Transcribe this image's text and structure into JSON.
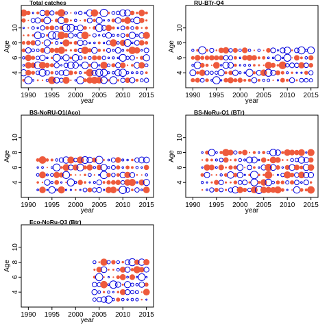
{
  "colors": {
    "positive": "#ee5a3c",
    "negative": "#0000dd",
    "frame": "#000000"
  },
  "chart_data": [
    {
      "type": "scatter",
      "title": "Total catches",
      "xlabel": "year",
      "ylabel": "Age",
      "xlim": [
        1988.5,
        2016.5
      ],
      "ylim": [
        2,
        13
      ],
      "x_ticks": [
        1990,
        1995,
        2000,
        2005,
        2010,
        2015
      ],
      "y_ticks": [
        4,
        6,
        8,
        10
      ],
      "years": [
        1989,
        2015
      ],
      "ages": [
        3,
        12
      ],
      "seed": 11,
      "density": 1.0
    },
    {
      "type": "scatter",
      "title": "RU-BTr-Q4",
      "xlabel": "year",
      "ylabel": "Age",
      "xlim": [
        1988.5,
        2016.5
      ],
      "ylim": [
        2,
        13
      ],
      "x_ticks": [
        1990,
        1995,
        2000,
        2005,
        2010,
        2015
      ],
      "y_ticks": [
        4,
        6,
        8,
        10
      ],
      "years": [
        1990,
        2015
      ],
      "ages": [
        3,
        7
      ],
      "seed": 23,
      "density": 1.0
    },
    {
      "type": "scatter",
      "title": "BS-NoRU-Q1(Aco)",
      "xlabel": "year",
      "ylabel": "Age",
      "xlim": [
        1988.5,
        2016.5
      ],
      "ylim": [
        2,
        13
      ],
      "x_ticks": [
        1990,
        1995,
        2000,
        2005,
        2010,
        2015
      ],
      "y_ticks": [
        4,
        6,
        8,
        10
      ],
      "years": [
        1992,
        2015
      ],
      "ages": [
        3,
        7
      ],
      "seed": 37,
      "density": 1.0
    },
    {
      "type": "scatter",
      "title": "BS-NoRu-Q1 (BTr)",
      "xlabel": "year",
      "ylabel": "Age",
      "xlim": [
        1988.5,
        2016.5
      ],
      "ylim": [
        2,
        13
      ],
      "x_ticks": [
        1990,
        1995,
        2000,
        2005,
        2010,
        2015
      ],
      "y_ticks": [
        4,
        6,
        8,
        10
      ],
      "years": [
        1992,
        2015
      ],
      "ages": [
        3,
        8
      ],
      "seed": 53,
      "density": 1.0
    },
    {
      "type": "scatter",
      "title": "Eco-NoRu-Q3 (Btr)",
      "xlabel": "year",
      "ylabel": "Age",
      "xlim": [
        1988.5,
        2016.5
      ],
      "ylim": [
        2,
        13
      ],
      "x_ticks": [
        1990,
        1995,
        2000,
        2005,
        2010,
        2015
      ],
      "y_ticks": [
        4,
        6,
        8,
        10
      ],
      "years": [
        2004,
        2015
      ],
      "ages": [
        3,
        8
      ],
      "seed": 71,
      "density": 1.0
    }
  ]
}
